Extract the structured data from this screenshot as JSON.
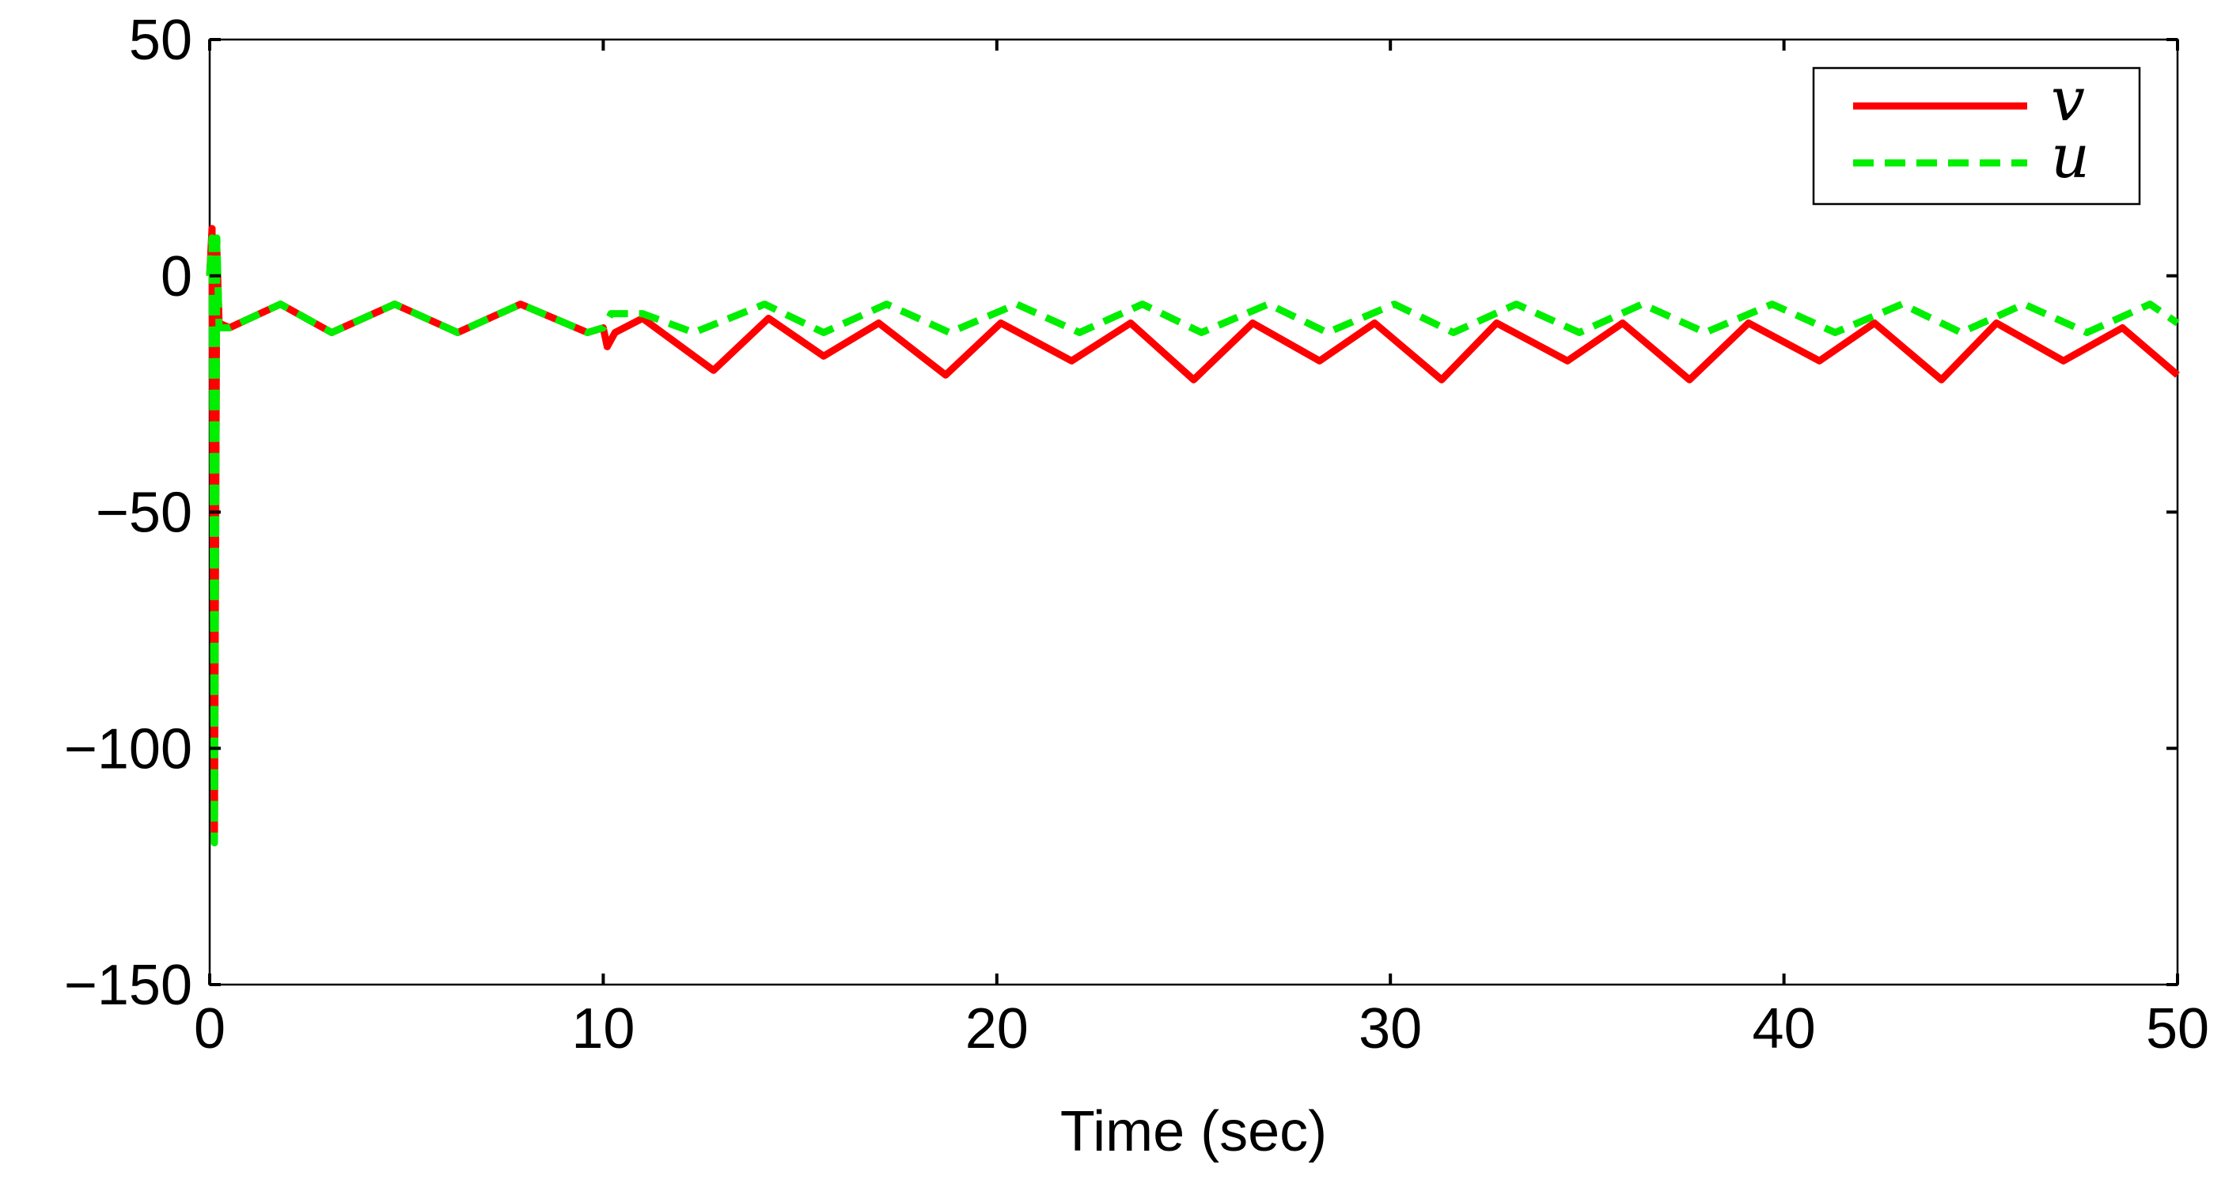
{
  "chart_data": {
    "type": "line",
    "title": "",
    "xlabel": "Time (sec)",
    "ylabel": "",
    "xlim": [
      0,
      50
    ],
    "ylim": [
      -150,
      50
    ],
    "xticks": [
      0,
      10,
      20,
      30,
      40,
      50
    ],
    "yticks": [
      50,
      0,
      -50,
      -100,
      -150
    ],
    "xtick_labels": [
      "0",
      "10",
      "20",
      "30",
      "40",
      "50"
    ],
    "ytick_labels": [
      "50",
      "0",
      "−50",
      "−100",
      "−150"
    ],
    "grid": false,
    "legend_position": "top-right",
    "series": [
      {
        "name": "v",
        "color": "#ff0000",
        "style": "solid",
        "points": [
          [
            0,
            0
          ],
          [
            0.06,
            10
          ],
          [
            0.12,
            -118
          ],
          [
            0.18,
            6
          ],
          [
            0.24,
            -10
          ],
          [
            0.5,
            -11
          ],
          [
            1.8,
            -6
          ],
          [
            3.1,
            -12
          ],
          [
            4.7,
            -6
          ],
          [
            6.3,
            -12
          ],
          [
            7.9,
            -6
          ],
          [
            9.6,
            -12
          ],
          [
            10.0,
            -11
          ],
          [
            10.1,
            -15
          ],
          [
            10.3,
            -12
          ],
          [
            11.0,
            -9
          ],
          [
            12.8,
            -20
          ],
          [
            14.2,
            -9
          ],
          [
            15.6,
            -17
          ],
          [
            17.0,
            -10
          ],
          [
            18.7,
            -21
          ],
          [
            20.1,
            -10
          ],
          [
            21.9,
            -18
          ],
          [
            23.4,
            -10
          ],
          [
            25.0,
            -22
          ],
          [
            26.5,
            -10
          ],
          [
            28.2,
            -18
          ],
          [
            29.6,
            -10
          ],
          [
            31.3,
            -22
          ],
          [
            32.7,
            -10
          ],
          [
            34.5,
            -18
          ],
          [
            35.9,
            -10
          ],
          [
            37.6,
            -22
          ],
          [
            39.1,
            -10
          ],
          [
            40.9,
            -18
          ],
          [
            42.3,
            -10
          ],
          [
            44.0,
            -22
          ],
          [
            45.4,
            -10
          ],
          [
            47.1,
            -18
          ],
          [
            48.6,
            -11
          ],
          [
            50.0,
            -21
          ]
        ]
      },
      {
        "name": "u",
        "color": "#00ee00",
        "style": "dashed",
        "points": [
          [
            0,
            0
          ],
          [
            0.06,
            8
          ],
          [
            0.12,
            -120
          ],
          [
            0.18,
            8
          ],
          [
            0.24,
            -11
          ],
          [
            0.5,
            -11
          ],
          [
            1.8,
            -6
          ],
          [
            3.1,
            -12
          ],
          [
            4.7,
            -6
          ],
          [
            6.3,
            -12
          ],
          [
            7.9,
            -6
          ],
          [
            9.6,
            -12
          ],
          [
            10.0,
            -11
          ],
          [
            10.2,
            -8
          ],
          [
            11.0,
            -8
          ],
          [
            12.3,
            -12
          ],
          [
            14.1,
            -6
          ],
          [
            15.6,
            -12
          ],
          [
            17.2,
            -6
          ],
          [
            18.8,
            -12
          ],
          [
            20.5,
            -6
          ],
          [
            22.1,
            -12
          ],
          [
            23.7,
            -6
          ],
          [
            25.2,
            -12
          ],
          [
            26.9,
            -6
          ],
          [
            28.4,
            -12
          ],
          [
            30.1,
            -6
          ],
          [
            31.6,
            -12
          ],
          [
            33.2,
            -6
          ],
          [
            34.8,
            -12
          ],
          [
            36.4,
            -6
          ],
          [
            38.0,
            -12
          ],
          [
            39.7,
            -6
          ],
          [
            41.3,
            -12
          ],
          [
            43.0,
            -6
          ],
          [
            44.5,
            -12
          ],
          [
            46.1,
            -6
          ],
          [
            47.7,
            -12
          ],
          [
            49.3,
            -6
          ],
          [
            50.0,
            -10
          ]
        ]
      }
    ]
  }
}
